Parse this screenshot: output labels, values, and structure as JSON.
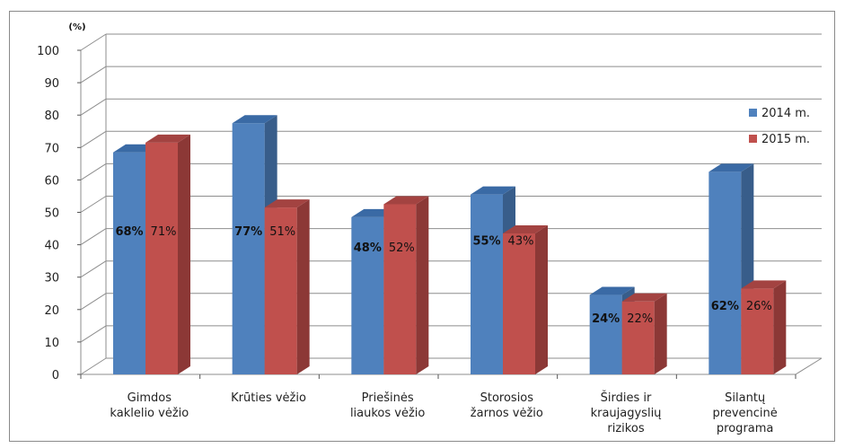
{
  "chart_data": {
    "type": "bar",
    "unit_label": "(%)",
    "categories": [
      [
        "Gimdos",
        "kaklelio vėžio"
      ],
      [
        "Krūties vėžio"
      ],
      [
        "Priešinės",
        "liaukos vėžio"
      ],
      [
        "Storosios",
        "žarnos vėžio"
      ],
      [
        "Širdies ir",
        "kraujagyslių",
        "rizikos"
      ],
      [
        "Silantų",
        "prevencinė",
        "programa"
      ]
    ],
    "series": [
      {
        "name": "2014 m.",
        "values": [
          68,
          77,
          48,
          55,
          24,
          62
        ],
        "labels": [
          "68%",
          "77%",
          "48%",
          "55%",
          "24%",
          "62%"
        ],
        "color": "#4f81bd",
        "side": "#385d8a",
        "top": "#3a6aa5"
      },
      {
        "name": "2015 m.",
        "values": [
          71,
          51,
          52,
          43,
          22,
          26
        ],
        "labels": [
          "71%",
          "51%",
          "52%",
          "43%",
          "22%",
          "26%"
        ],
        "color": "#c0504d",
        "side": "#8c3836",
        "top": "#a34341"
      }
    ],
    "ylim": [
      0,
      100
    ],
    "yticks": [
      0,
      10,
      20,
      30,
      40,
      50,
      60,
      70,
      80,
      90,
      100
    ],
    "grid": true,
    "legend_position": "right"
  }
}
